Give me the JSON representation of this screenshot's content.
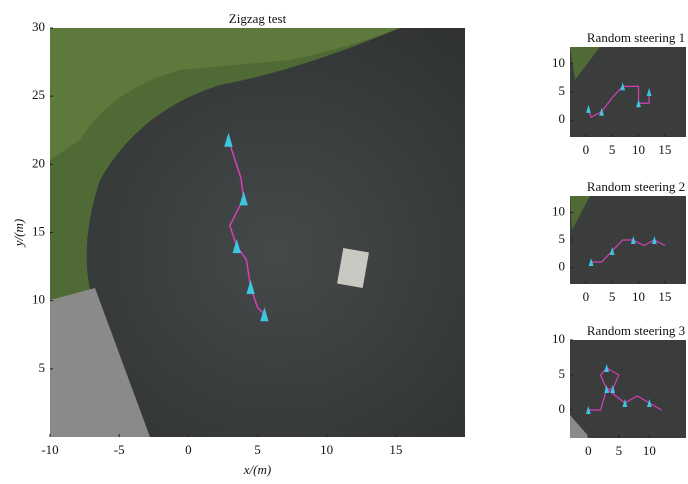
{
  "chart_data": [
    {
      "type": "line",
      "title": "Zigzag test",
      "x_label": "x/(m)",
      "y_label": "y/(m)",
      "x": [
        2.9,
        3.8,
        4.0,
        3.0,
        3.5,
        4.2,
        4.5,
        5.0,
        5.5
      ],
      "values": [
        21.8,
        19.0,
        17.5,
        15.5,
        14.0,
        13.0,
        11.0,
        9.5,
        9.0
      ],
      "color": "#d63fb8",
      "marker_color": "#3ec6e0",
      "xlim": [
        -10,
        20
      ],
      "ylim": [
        0,
        30
      ],
      "xticks": [
        -10,
        -5,
        0,
        5,
        10,
        15
      ],
      "yticks": [
        5,
        10,
        15,
        20,
        25,
        30
      ]
    },
    {
      "type": "line",
      "title": "Random steering 1",
      "x": [
        0.5,
        1.0,
        3.0,
        5.0,
        7.0,
        10.0,
        10.0,
        12.0,
        12.0
      ],
      "values": [
        2.0,
        0.5,
        1.5,
        4.0,
        6.0,
        6.0,
        3.0,
        3.0,
        5.0
      ],
      "color": "#d63fb8",
      "marker_color": "#3ec6e0",
      "xlim": [
        -3,
        19
      ],
      "ylim": [
        -3,
        13
      ],
      "xticks": [
        0,
        5,
        10,
        15
      ],
      "yticks": [
        0,
        5,
        10
      ]
    },
    {
      "type": "line",
      "title": "Random steering 2",
      "x": [
        1.0,
        3.0,
        5.0,
        7.0,
        9.0,
        11.0,
        13.0,
        15.0
      ],
      "values": [
        1.0,
        1.0,
        3.0,
        5.0,
        5.0,
        4.0,
        5.0,
        4.0
      ],
      "color": "#d63fb8",
      "marker_color": "#3ec6e0",
      "xlim": [
        -3,
        19
      ],
      "ylim": [
        -3,
        13
      ],
      "xticks": [
        0,
        5,
        10,
        15
      ],
      "yticks": [
        0,
        5,
        10
      ]
    },
    {
      "type": "line",
      "title": "Random steering 3",
      "x": [
        0.0,
        2.0,
        3.0,
        2.0,
        3.0,
        5.0,
        4.0,
        3.0,
        6.0,
        8.0,
        10.0,
        12.0
      ],
      "values": [
        0.0,
        0.0,
        3.0,
        5.0,
        6.0,
        5.0,
        3.0,
        3.0,
        1.0,
        2.0,
        1.0,
        0.0
      ],
      "color": "#d63fb8",
      "marker_color": "#3ec6e0",
      "xlim": [
        -3,
        16
      ],
      "ylim": [
        -4,
        10
      ],
      "xticks": [
        0,
        5,
        10
      ],
      "yticks": [
        0,
        5,
        10
      ]
    }
  ]
}
